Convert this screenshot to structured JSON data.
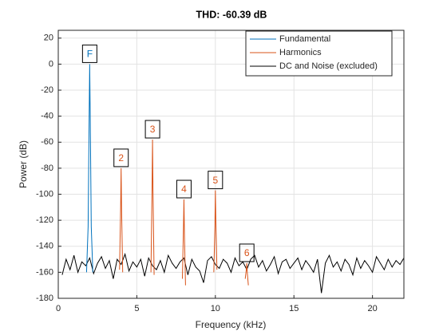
{
  "chart_data": {
    "type": "line",
    "title": "THD: -60.39 dB",
    "xlabel": "Frequency (kHz)",
    "ylabel": "Power (dB)",
    "xlim": [
      0,
      22
    ],
    "xticks": [
      0,
      5,
      10,
      15,
      20
    ],
    "ylim": [
      -180,
      26
    ],
    "yticks": [
      -180,
      -160,
      -140,
      -120,
      -100,
      -80,
      -60,
      -40,
      -20,
      0,
      20
    ],
    "grid": true,
    "legend_corner": "northeast",
    "series": [
      {
        "name": "Fundamental",
        "color": "#0072bd",
        "x": [
          1.8,
          1.9,
          1.95,
          2,
          2.05,
          2.1,
          2.2
        ],
        "values": [
          -160,
          -125,
          -60,
          0,
          -60,
          -125,
          -160
        ]
      },
      {
        "name": "Harmonics",
        "color": "#d95319",
        "x": [
          3.9,
          3.97,
          4,
          4.03,
          4.1,
          5,
          5.9,
          5.97,
          6,
          6.03,
          6.1,
          7,
          7.9,
          7.97,
          8,
          8.03,
          8.1,
          9,
          9.9,
          9.97,
          10,
          10.03,
          10.1,
          11,
          11.9,
          11.97,
          12,
          12.03,
          12.1
        ],
        "values": [
          -158,
          -110,
          -80,
          -112,
          -160,
          null,
          -160,
          -95,
          -58,
          -97,
          -162,
          null,
          -165,
          -125,
          -104,
          -130,
          -170,
          null,
          -160,
          -125,
          -97,
          -120,
          -158,
          null,
          -165,
          -158,
          -153,
          -160,
          -170
        ]
      },
      {
        "name": "DC and Noise (excluded)",
        "color": "#000000",
        "x": [
          0.25,
          0.5,
          0.75,
          1,
          1.25,
          1.5,
          1.75,
          2,
          2.25,
          2.5,
          2.75,
          3,
          3.25,
          3.5,
          3.75,
          4,
          4.25,
          4.5,
          4.75,
          5,
          5.25,
          5.5,
          5.75,
          6,
          6.25,
          6.5,
          6.75,
          7,
          7.25,
          7.5,
          7.75,
          8,
          8.25,
          8.5,
          8.75,
          9,
          9.25,
          9.5,
          9.75,
          10,
          10.25,
          10.5,
          10.75,
          11,
          11.25,
          11.5,
          11.75,
          12,
          12.25,
          12.5,
          12.75,
          13,
          13.25,
          13.5,
          13.75,
          14,
          14.25,
          14.5,
          14.75,
          15,
          15.25,
          15.5,
          15.75,
          16,
          16.25,
          16.5,
          16.75,
          17,
          17.25,
          17.5,
          17.75,
          18,
          18.25,
          18.5,
          18.75,
          19,
          19.25,
          19.5,
          19.75,
          20,
          20.25,
          20.5,
          20.75,
          21,
          21.25,
          21.5,
          21.75,
          22
        ],
        "values": [
          -162,
          -150,
          -158,
          -147,
          -160,
          -152,
          -155,
          -149,
          -161,
          -153,
          -148,
          -157,
          -151,
          -165,
          -150,
          -154,
          -146,
          -159,
          -152,
          -156,
          -150,
          -163,
          -149,
          -155,
          -158,
          -151,
          -160,
          -147,
          -153,
          -157,
          -152,
          -149,
          -162,
          -150,
          -156,
          -159,
          -168,
          -151,
          -148,
          -154,
          -157,
          -150,
          -153,
          -160,
          -149,
          -155,
          -152,
          -158,
          -150,
          -147,
          -156,
          -151,
          -159,
          -154,
          -148,
          -161,
          -152,
          -150,
          -157,
          -153,
          -149,
          -158,
          -151,
          -155,
          -160,
          -150,
          -176,
          -153,
          -147,
          -156,
          -152,
          -159,
          -150,
          -154,
          -162,
          -149,
          -157,
          -151,
          -155,
          -160,
          -148,
          -153,
          -158,
          -150,
          -156,
          -151,
          -154,
          -149
        ]
      }
    ],
    "markers": [
      {
        "label": "F",
        "x": 2,
        "y": 0
      },
      {
        "label": "2",
        "x": 4,
        "y": -80
      },
      {
        "label": "3",
        "x": 6,
        "y": -58
      },
      {
        "label": "4",
        "x": 8,
        "y": -104
      },
      {
        "label": "5",
        "x": 10,
        "y": -97
      },
      {
        "label": "6",
        "x": 12,
        "y": -153
      }
    ]
  }
}
